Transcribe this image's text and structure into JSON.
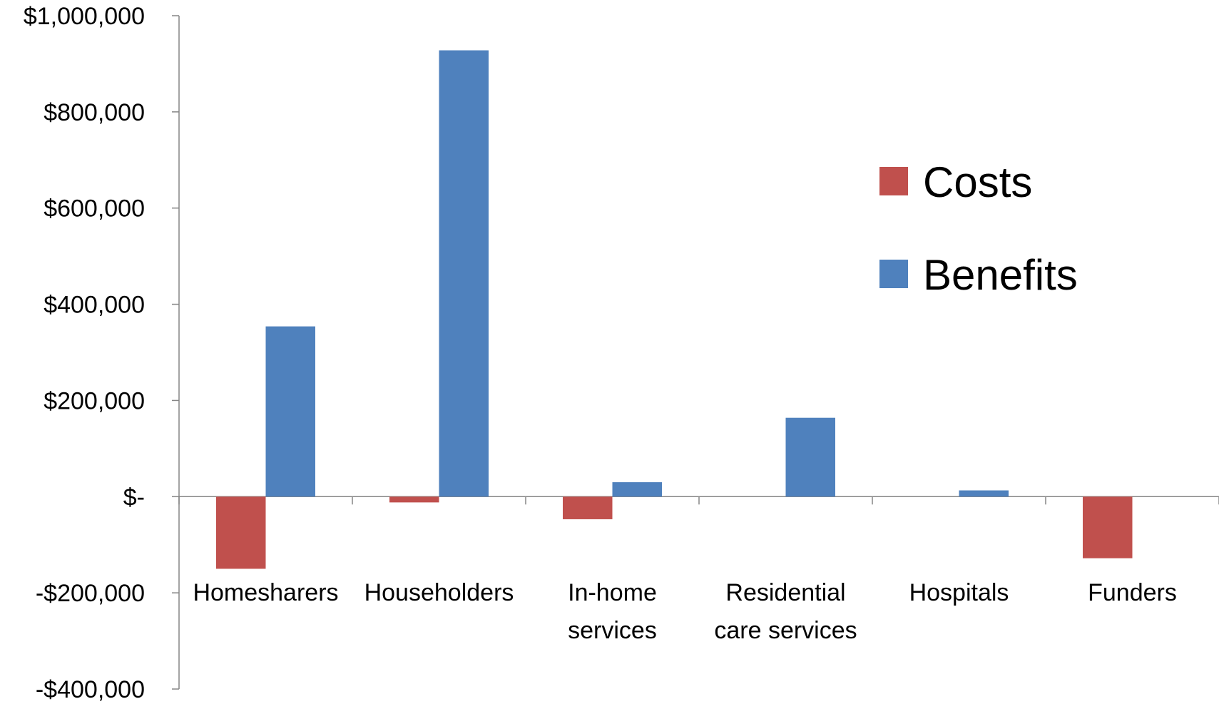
{
  "chart_data": {
    "type": "bar",
    "categories": [
      [
        "Homesharers"
      ],
      [
        "Householders"
      ],
      [
        "In-home",
        "services"
      ],
      [
        "Residential",
        "care services"
      ],
      [
        "Hospitals"
      ],
      [
        "Funders"
      ]
    ],
    "series": [
      {
        "name": "Costs",
        "color": "#C0504D",
        "values": [
          -150000,
          -12000,
          -47000,
          0,
          0,
          -128000
        ]
      },
      {
        "name": "Benefits",
        "color": "#4F81BD",
        "values": [
          354000,
          928000,
          30000,
          164000,
          13000,
          0
        ]
      }
    ],
    "ylim": [
      -400000,
      1000000
    ],
    "yticks": [
      {
        "value": 1000000,
        "label": "$1,000,000"
      },
      {
        "value": 800000,
        "label": "$800,000"
      },
      {
        "value": 600000,
        "label": "$600,000"
      },
      {
        "value": 400000,
        "label": "$400,000"
      },
      {
        "value": 200000,
        "label": "$200,000"
      },
      {
        "value": 0,
        "label": "$-"
      },
      {
        "value": -200000,
        "label": "-$200,000"
      },
      {
        "value": -400000,
        "label": "-$400,000"
      }
    ],
    "legend": {
      "position": "right"
    },
    "grid": false,
    "axis_color": "#868686"
  }
}
